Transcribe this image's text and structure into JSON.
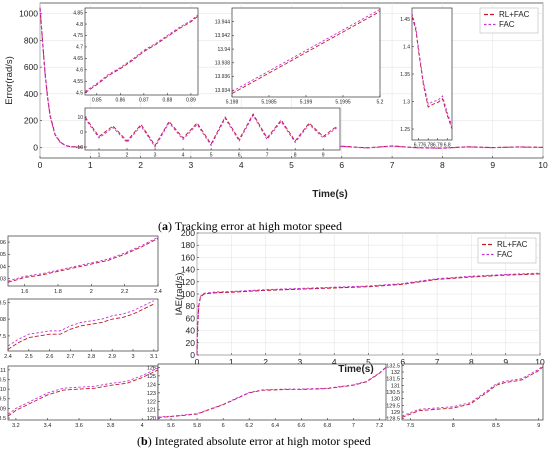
{
  "figure_a": {
    "caption_label": "a",
    "caption_text": "Tracking error at high motor speed",
    "ylabel": "Error(rad/s)",
    "xlabel": "Time(s)",
    "legend": [
      "RL+FAC",
      "FAC"
    ]
  },
  "figure_b": {
    "caption_label": "b",
    "caption_text": "Integrated absolute error at high motor speed",
    "ylabel": "IAE(rad/s)",
    "xlabel": "Time(s)",
    "legend": [
      "RL+FAC",
      "FAC"
    ]
  },
  "colors": {
    "rl_fac": "#c0182a",
    "fac": "#c832d4",
    "axis": "#333333",
    "grid": "#e6e6e6"
  },
  "chart_data": [
    {
      "id": "a_main",
      "type": "line",
      "xticks": [
        "0",
        "1",
        "2",
        "3",
        "4",
        "5",
        "6",
        "7",
        "8",
        "9",
        "10"
      ],
      "yticks": [
        "0",
        "200",
        "400",
        "600",
        "800",
        "1000"
      ],
      "xlim": [
        0,
        10
      ],
      "ylim": [
        -80,
        1080
      ],
      "series": [
        {
          "name": "RL+FAC",
          "x": [
            0,
            0.05,
            0.1,
            0.15,
            0.2,
            0.3,
            0.4,
            0.5,
            0.6,
            0.8,
            1,
            1.5,
            2,
            2.5,
            3,
            3.2,
            3.5,
            4,
            4.5,
            5,
            5.5,
            6,
            6.5,
            7,
            7.5,
            8,
            8.5,
            9,
            9.5,
            10
          ],
          "y": [
            1045,
            800,
            560,
            380,
            240,
            95,
            40,
            15,
            5,
            2,
            1,
            -2,
            3,
            -4,
            5,
            -8,
            4,
            -3,
            3,
            -5,
            2,
            8,
            -4,
            10,
            -3,
            -6,
            4,
            -2,
            3,
            0
          ]
        },
        {
          "name": "FAC",
          "x": [
            0,
            0.05,
            0.1,
            0.15,
            0.2,
            0.3,
            0.4,
            0.5,
            0.6,
            0.8,
            1,
            1.5,
            2,
            2.5,
            3,
            3.2,
            3.5,
            4,
            4.5,
            5,
            5.5,
            6,
            6.5,
            7,
            7.5,
            8,
            8.5,
            9,
            9.5,
            10
          ],
          "y": [
            1040,
            790,
            550,
            370,
            232,
            90,
            38,
            14,
            4,
            1,
            0,
            -3,
            2,
            -5,
            4,
            -9,
            3,
            -4,
            2,
            -6,
            1,
            7,
            -5,
            9,
            -4,
            -7,
            3,
            -3,
            2,
            -1
          ]
        }
      ]
    },
    {
      "id": "a_inset1",
      "type": "line",
      "xticks": [
        "0.85",
        "0.86",
        "0.87",
        "0.88",
        "0.89"
      ],
      "yticks": [
        "4.5",
        "4.55",
        "4.6",
        "4.65",
        "4.7",
        "4.75",
        "4.8",
        "4.85"
      ],
      "xlim": [
        0.845,
        0.893
      ],
      "ylim": [
        4.49,
        4.87
      ],
      "series": [
        {
          "name": "RL+FAC",
          "x": [
            0.845,
            0.85,
            0.855,
            0.86,
            0.865,
            0.87,
            0.875,
            0.88,
            0.885,
            0.89,
            0.893
          ],
          "y": [
            4.5,
            4.535,
            4.575,
            4.605,
            4.64,
            4.68,
            4.71,
            4.745,
            4.78,
            4.81,
            4.835
          ]
        },
        {
          "name": "FAC",
          "x": [
            0.845,
            0.85,
            0.855,
            0.86,
            0.865,
            0.87,
            0.875,
            0.88,
            0.885,
            0.89,
            0.893
          ],
          "y": [
            4.505,
            4.54,
            4.58,
            4.61,
            4.645,
            4.685,
            4.715,
            4.75,
            4.785,
            4.815,
            4.84
          ]
        }
      ]
    },
    {
      "id": "a_inset2",
      "type": "line",
      "xticks": [
        "5.198",
        "5.1985",
        "5.199",
        "5.1995",
        "5.2"
      ],
      "yticks": [
        "13.934",
        "13.936",
        "13.938",
        "13.94",
        "13.942",
        "13.944"
      ],
      "xlim": [
        5.198,
        5.2
      ],
      "ylim": [
        13.933,
        13.946
      ],
      "series": [
        {
          "name": "RL+FAC",
          "x": [
            5.198,
            5.1985,
            5.199,
            5.1995,
            5.2
          ],
          "y": [
            13.9335,
            13.9365,
            13.9395,
            13.9425,
            13.9455
          ]
        },
        {
          "name": "FAC",
          "x": [
            5.198,
            5.1985,
            5.199,
            5.1995,
            5.2
          ],
          "y": [
            13.9338,
            13.9368,
            13.9398,
            13.9428,
            13.9458
          ]
        }
      ]
    },
    {
      "id": "a_inset3",
      "type": "line",
      "xticks": [
        "6.77",
        "6.78",
        "6.79",
        "6.8"
      ],
      "yticks": [
        "1.25",
        "1.3",
        "1.35",
        "1.4",
        "1.45"
      ],
      "xlim": [
        6.763,
        6.805
      ],
      "ylim": [
        1.23,
        1.47
      ],
      "series": [
        {
          "name": "RL+FAC",
          "x": [
            6.763,
            6.767,
            6.77,
            6.775,
            6.78,
            6.785,
            6.79,
            6.795,
            6.8,
            6.805
          ],
          "y": [
            1.455,
            1.43,
            1.39,
            1.33,
            1.29,
            1.295,
            1.298,
            1.305,
            1.275,
            1.25
          ]
        },
        {
          "name": "FAC",
          "x": [
            6.763,
            6.767,
            6.77,
            6.775,
            6.78,
            6.785,
            6.79,
            6.795,
            6.8,
            6.805
          ],
          "y": [
            1.46,
            1.435,
            1.395,
            1.335,
            1.295,
            1.3,
            1.302,
            1.31,
            1.28,
            1.255
          ]
        }
      ]
    },
    {
      "id": "a_inset4",
      "type": "line",
      "xticks": [
        "1",
        "2",
        "3",
        "4",
        "5",
        "6",
        "7",
        "8",
        "9"
      ],
      "yticks": [
        "-10",
        "0",
        "10"
      ],
      "xlim": [
        0.5,
        9.6
      ],
      "ylim": [
        -12,
        16
      ],
      "series": [
        {
          "name": "RL+FAC",
          "x": [
            0.5,
            1,
            1.5,
            2,
            2.5,
            3,
            3.5,
            4,
            4.5,
            5,
            5.5,
            6,
            6.5,
            7,
            7.5,
            8,
            8.5,
            9,
            9.5
          ],
          "y": [
            10,
            -3,
            4,
            -6,
            5,
            -9,
            7,
            -4,
            6,
            -8,
            10,
            -5,
            12,
            -4,
            8,
            -6,
            6,
            -3,
            4
          ]
        },
        {
          "name": "FAC",
          "x": [
            0.5,
            1,
            1.5,
            2,
            2.5,
            3,
            3.5,
            4,
            4.5,
            5,
            5.5,
            6,
            6.5,
            7,
            7.5,
            8,
            8.5,
            9,
            9.5
          ],
          "y": [
            9,
            -4,
            3,
            -7,
            4,
            -10,
            6,
            -5,
            5,
            -9,
            9,
            -6,
            11,
            -5,
            7,
            -7,
            5,
            -4,
            3
          ]
        }
      ]
    },
    {
      "id": "b_main",
      "type": "line",
      "xticks": [
        "0",
        "1",
        "2",
        "3",
        "4",
        "5",
        "6",
        "7",
        "8",
        "9",
        "10"
      ],
      "yticks": [
        "0",
        "20",
        "40",
        "60",
        "80",
        "100",
        "120",
        "140",
        "160",
        "180",
        "200"
      ],
      "xlim": [
        0,
        10
      ],
      "ylim": [
        0,
        200
      ],
      "series": [
        {
          "name": "RL+FAC",
          "x": [
            0,
            0.02,
            0.05,
            0.1,
            0.2,
            0.5,
            1,
            2,
            3,
            4,
            5,
            6,
            7,
            8,
            9,
            10
          ],
          "y": [
            0,
            50,
            80,
            95,
            100,
            102,
            103,
            106,
            108,
            110,
            112,
            116,
            124,
            128,
            131,
            133
          ]
        },
        {
          "name": "FAC",
          "x": [
            0,
            0.02,
            0.05,
            0.1,
            0.2,
            0.5,
            1,
            2,
            3,
            4,
            5,
            6,
            7,
            8,
            9,
            10
          ],
          "y": [
            0,
            51,
            81,
            96,
            101,
            103,
            104,
            107,
            109,
            111,
            113,
            117,
            125,
            129,
            132,
            134
          ]
        }
      ]
    },
    {
      "id": "b_inset1",
      "type": "line",
      "xticks": [
        "1.6",
        "1.8",
        "2",
        "2.2",
        "2.4"
      ],
      "yticks": [
        "103",
        "104",
        "105",
        "106"
      ],
      "xlim": [
        1.5,
        2.4
      ],
      "ylim": [
        102.4,
        106.5
      ],
      "series": [
        {
          "name": "RL+FAC",
          "x": [
            1.5,
            1.6,
            1.7,
            1.8,
            1.9,
            2,
            2.1,
            2.2,
            2.3,
            2.4
          ],
          "y": [
            102.7,
            103.1,
            103.3,
            103.6,
            103.9,
            104.2,
            104.5,
            105,
            105.6,
            106.3
          ]
        },
        {
          "name": "FAC",
          "x": [
            1.5,
            1.6,
            1.7,
            1.8,
            1.9,
            2,
            2.1,
            2.2,
            2.3,
            2.4
          ],
          "y": [
            102.8,
            103.2,
            103.4,
            103.7,
            104,
            104.3,
            104.6,
            105.1,
            105.7,
            106.4
          ]
        }
      ]
    },
    {
      "id": "b_inset2",
      "type": "line",
      "xticks": [
        "2.4",
        "2.5",
        "2.6",
        "2.7",
        "2.8",
        "2.9",
        "3",
        "3.1"
      ],
      "yticks": [
        "107.5",
        "108",
        "108.5"
      ],
      "xlim": [
        2.4,
        3.12
      ],
      "ylim": [
        107.05,
        108.6
      ],
      "series": [
        {
          "name": "RL+FAC",
          "x": [
            2.4,
            2.45,
            2.5,
            2.55,
            2.6,
            2.65,
            2.7,
            2.75,
            2.8,
            2.85,
            2.9,
            2.95,
            3,
            3.05,
            3.1
          ],
          "y": [
            107.1,
            107.3,
            107.45,
            107.5,
            107.55,
            107.55,
            107.7,
            107.8,
            107.85,
            107.9,
            108,
            108.05,
            108.15,
            108.3,
            108.45
          ]
        },
        {
          "name": "FAC",
          "x": [
            2.4,
            2.45,
            2.5,
            2.55,
            2.6,
            2.65,
            2.7,
            2.75,
            2.8,
            2.85,
            2.9,
            2.95,
            3,
            3.05,
            3.1
          ],
          "y": [
            107.2,
            107.4,
            107.55,
            107.6,
            107.65,
            107.65,
            107.8,
            107.9,
            107.95,
            108,
            108.1,
            108.15,
            108.25,
            108.4,
            108.55
          ]
        }
      ]
    },
    {
      "id": "b_inset3",
      "type": "line",
      "xticks": [
        "3.2",
        "3.4",
        "3.6",
        "3.8",
        "4"
      ],
      "yticks": [
        "108.5",
        "109",
        "109.5",
        "110",
        "110.5",
        "111"
      ],
      "xlim": [
        3.15,
        4.1
      ],
      "ylim": [
        108.4,
        111.2
      ],
      "series": [
        {
          "name": "RL+FAC",
          "x": [
            3.15,
            3.2,
            3.3,
            3.4,
            3.5,
            3.6,
            3.7,
            3.8,
            3.9,
            4,
            4.1
          ],
          "y": [
            108.6,
            108.9,
            109.3,
            109.7,
            109.95,
            110,
            110.05,
            110.2,
            110.3,
            110.6,
            111
          ]
        },
        {
          "name": "FAC",
          "x": [
            3.15,
            3.2,
            3.3,
            3.4,
            3.5,
            3.6,
            3.7,
            3.8,
            3.9,
            4,
            4.1
          ],
          "y": [
            108.7,
            109,
            109.4,
            109.8,
            110.05,
            110.1,
            110.15,
            110.3,
            110.4,
            110.7,
            111.1
          ]
        }
      ]
    },
    {
      "id": "b_inset4",
      "type": "line",
      "xticks": [
        "5.6",
        "5.8",
        "6",
        "6.2",
        "6.4",
        "6.6",
        "6.8",
        "7",
        "7.2"
      ],
      "yticks": [
        "120",
        "121",
        "122",
        "123",
        "124",
        "125",
        "126"
      ],
      "xlim": [
        5.5,
        7.25
      ],
      "ylim": [
        119.8,
        126.4
      ],
      "series": [
        {
          "name": "RL+FAC",
          "x": [
            5.5,
            5.6,
            5.8,
            6,
            6.2,
            6.3,
            6.4,
            6.5,
            6.6,
            6.8,
            7,
            7.1,
            7.2,
            7.25
          ],
          "y": [
            120.1,
            120.2,
            120.5,
            121.6,
            123,
            123.3,
            123.35,
            123.4,
            123.4,
            123.5,
            123.9,
            124.3,
            125.3,
            126
          ]
        },
        {
          "name": "FAC",
          "x": [
            5.5,
            5.6,
            5.8,
            6,
            6.2,
            6.3,
            6.4,
            6.5,
            6.6,
            6.8,
            7,
            7.1,
            7.2,
            7.25
          ],
          "y": [
            120.15,
            120.25,
            120.55,
            121.65,
            123.05,
            123.35,
            123.4,
            123.45,
            123.45,
            123.55,
            123.95,
            124.35,
            125.35,
            126.05
          ]
        }
      ]
    },
    {
      "id": "b_inset5",
      "type": "line",
      "xticks": [
        "7.5",
        "8",
        "8.5",
        "9"
      ],
      "yticks": [
        "128.5",
        "129",
        "129.5",
        "130",
        "130.5",
        "131",
        "131.5",
        "132",
        "132.5"
      ],
      "xlim": [
        7.4,
        9.05
      ],
      "ylim": [
        128.4,
        132.6
      ],
      "series": [
        {
          "name": "RL+FAC",
          "x": [
            7.4,
            7.6,
            7.8,
            8,
            8.2,
            8.4,
            8.5,
            8.6,
            8.8,
            9,
            9.05
          ],
          "y": [
            128.6,
            129.1,
            129.2,
            129.3,
            129.6,
            130.5,
            131,
            131.2,
            131.4,
            132.1,
            132.4
          ]
        },
        {
          "name": "FAC",
          "x": [
            7.4,
            7.6,
            7.8,
            8,
            8.2,
            8.4,
            8.5,
            8.6,
            8.8,
            9,
            9.05
          ],
          "y": [
            128.7,
            129.2,
            129.3,
            129.4,
            129.7,
            130.6,
            131.1,
            131.3,
            131.5,
            132.2,
            132.5
          ]
        }
      ]
    }
  ]
}
